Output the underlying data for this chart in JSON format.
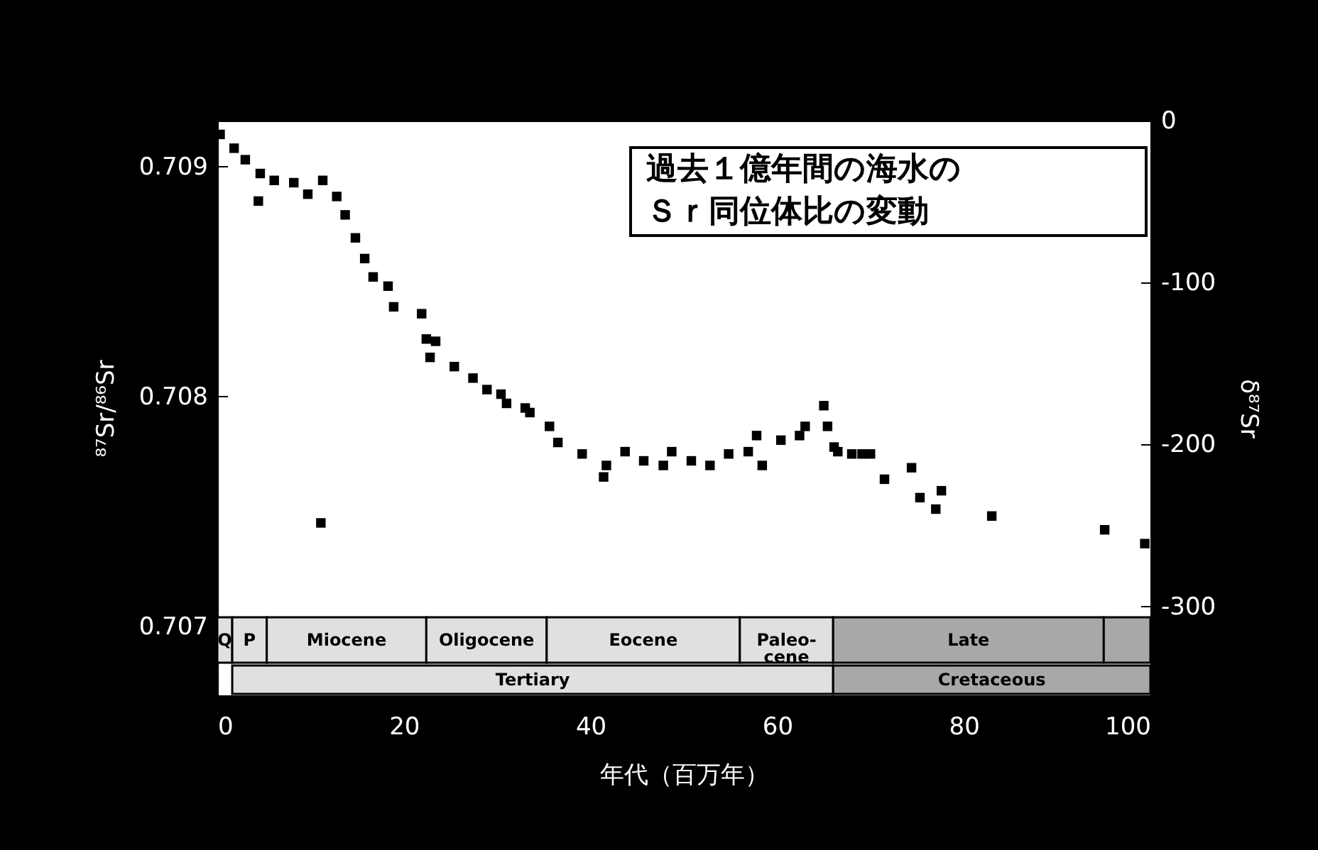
{
  "chart_data": {
    "type": "scatter",
    "title": "過去１億年間の海水の",
    "subtitle": "Ｓｒ同位体比の変動",
    "xlabel": "年代（百万年）",
    "ylabel": "⁸⁷Sr/⁸⁶Sr",
    "y2label": "δ⁸⁷Sr",
    "xlim": [
      0,
      100
    ],
    "xticks": [
      0,
      20,
      40,
      60,
      80,
      100
    ],
    "ylim": [
      0.7067,
      0.7092
    ],
    "yticks": [
      0.707,
      0.708,
      0.709
    ],
    "y2lim": [
      -355,
      0
    ],
    "y2ticks": [
      -300,
      -200,
      -100,
      0
    ],
    "grid": false,
    "marker": "square",
    "series": [
      {
        "color": "#000000",
        "x": [
          0.3,
          1.8,
          3,
          4.4,
          4.6,
          6.1,
          8.2,
          9.7,
          11.1,
          11.3,
          12.8,
          13.7,
          14.8,
          15.8,
          16.7,
          18.3,
          18.9,
          21.9,
          22.4,
          22.8,
          23.4,
          25.4,
          27.4,
          28.9,
          30.4,
          31.0,
          33.0,
          33.5,
          35.6,
          36.5,
          39.1,
          41.4,
          41.7,
          43.7,
          45.7,
          47.8,
          48.7,
          50.8,
          52.8,
          54.8,
          56.9,
          57.8,
          58.4,
          60.4,
          62.4,
          63.0,
          65.0,
          65.4,
          66.1,
          66.5,
          68.0,
          69.1,
          70.0,
          71.5,
          74.4,
          75.3,
          77.0,
          77.6,
          83.0,
          95.1,
          99.4
        ],
        "values": [
          0.70914,
          0.70908,
          0.70903,
          0.70885,
          0.70897,
          0.70894,
          0.70893,
          0.70888,
          0.70745,
          0.70894,
          0.70887,
          0.70879,
          0.70869,
          0.7086,
          0.70852,
          0.70848,
          0.70839,
          0.70836,
          0.70825,
          0.70817,
          0.70824,
          0.70813,
          0.70808,
          0.70803,
          0.70801,
          0.70797,
          0.70795,
          0.70793,
          0.70787,
          0.7078,
          0.70775,
          0.70765,
          0.7077,
          0.70776,
          0.70772,
          0.7077,
          0.70776,
          0.70772,
          0.7077,
          0.70775,
          0.70776,
          0.70783,
          0.7077,
          0.70781,
          0.70783,
          0.70787,
          0.70796,
          0.70787,
          0.70778,
          0.70776,
          0.70775,
          0.70775,
          0.70775,
          0.70764,
          0.70769,
          0.70756,
          0.70751,
          0.70759,
          0.70748,
          0.70742,
          0.70736
        ]
      }
    ],
    "bands": [
      {
        "axis": "x",
        "from": 0,
        "to": 1.6,
        "label": "Q",
        "color": "#e0e0e0"
      },
      {
        "axis": "x",
        "from": 1.6,
        "to": 5.3,
        "label": "P",
        "color": "#e0e0e0"
      },
      {
        "axis": "x",
        "from": 5.3,
        "to": 22.4,
        "label": "Miocene",
        "color": "#e0e0e0"
      },
      {
        "axis": "x",
        "from": 22.4,
        "to": 35.3,
        "label": "Oligocene",
        "color": "#e0e0e0"
      },
      {
        "axis": "x",
        "from": 35.3,
        "to": 56,
        "label": "Eocene",
        "color": "#e0e0e0"
      },
      {
        "axis": "x",
        "from": 56,
        "to": 66,
        "label": "Paleo-\ncene",
        "color": "#e0e0e0"
      },
      {
        "axis": "x",
        "from": 66,
        "to": 95,
        "label": "Late",
        "color": "#a8a8a8"
      },
      {
        "axis": "x",
        "from": 95,
        "to": 100,
        "label": null,
        "color": "#a8a8a8"
      },
      {
        "axis": "x",
        "from": 1.6,
        "to": 66,
        "label": "Tertiary",
        "color": "#e0e0e0"
      },
      {
        "axis": "x",
        "from": 66,
        "to": 100,
        "label": "Cretaceous",
        "color": "#a8a8a8"
      }
    ]
  }
}
